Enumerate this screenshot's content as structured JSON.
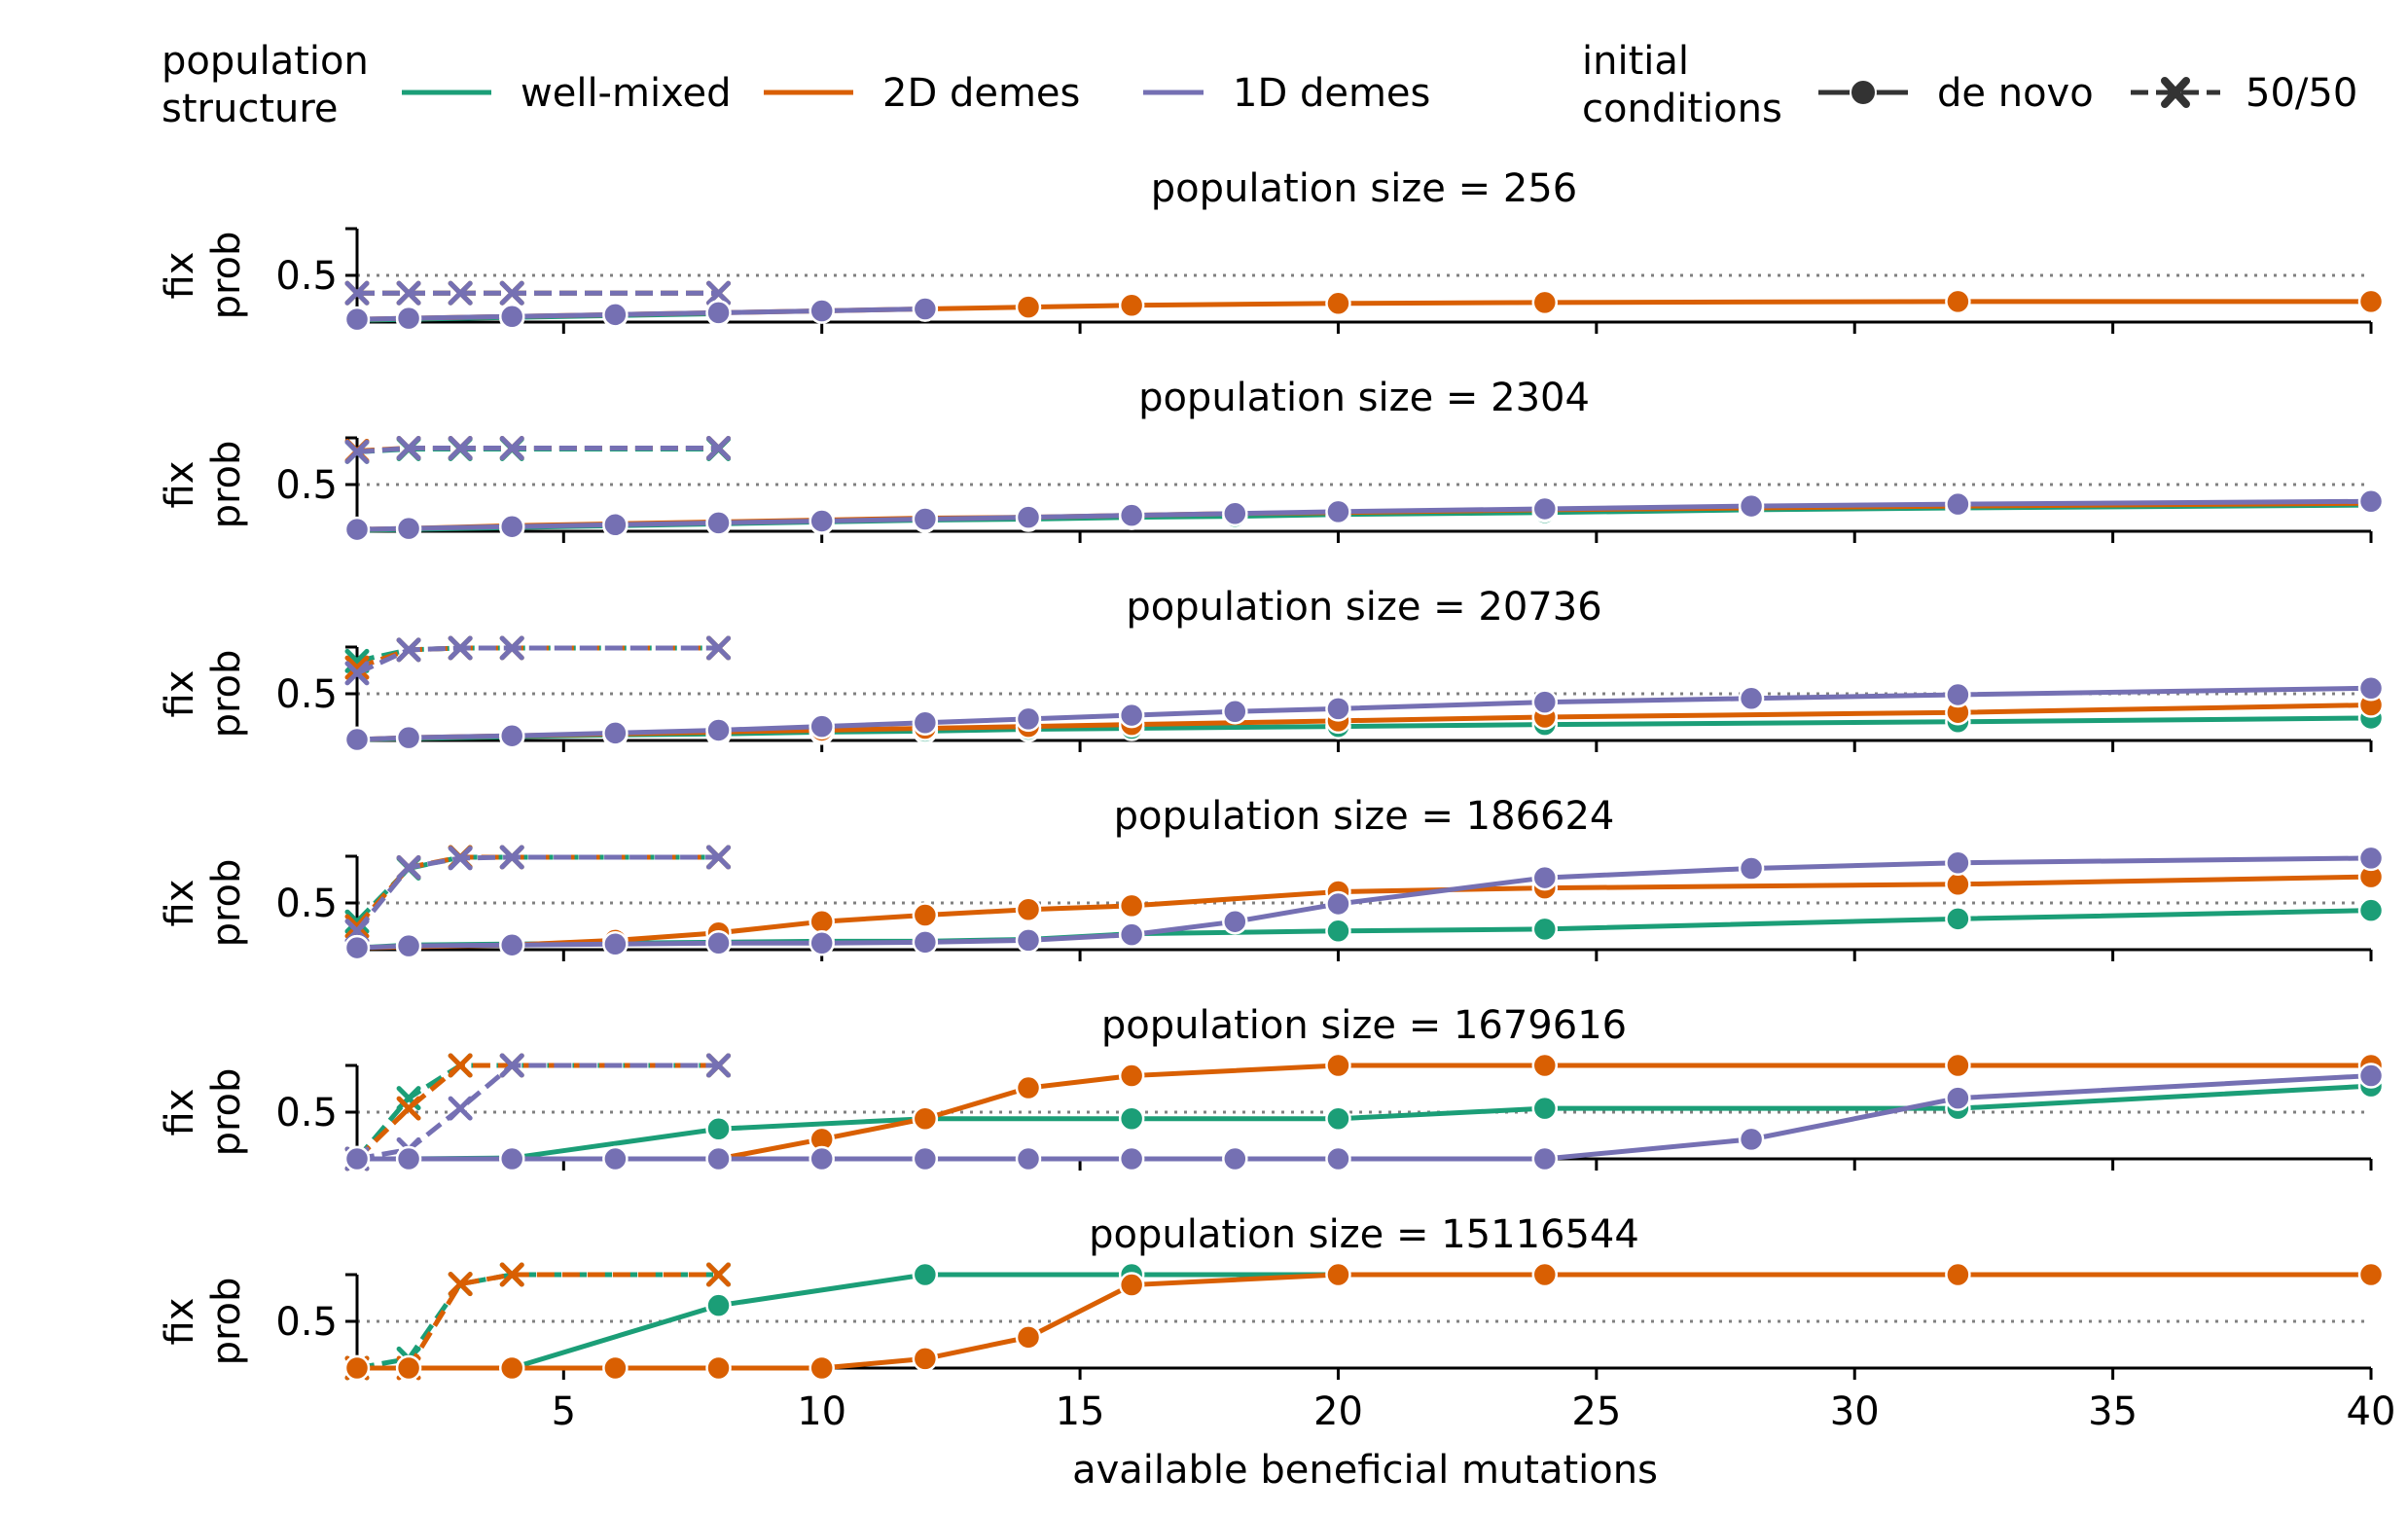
{
  "legend": {
    "structure_title": [
      "population",
      "structure"
    ],
    "structure_items": [
      {
        "label": "well-mixed",
        "color": "#1b9e77"
      },
      {
        "label": "2D demes",
        "color": "#d95f02"
      },
      {
        "label": "1D demes",
        "color": "#7570b3"
      }
    ],
    "conditions_title": [
      "initial",
      "conditions"
    ],
    "condition_items": [
      {
        "label": "de novo",
        "style": "solid",
        "marker": "circle"
      },
      {
        "label": "50/50",
        "style": "dashed",
        "marker": "x"
      }
    ]
  },
  "chart_data": {
    "type": "line",
    "xlabel": "available beneficial mutations",
    "ylabel": [
      "fix",
      "prob"
    ],
    "xlim": [
      1,
      40
    ],
    "ylim": [
      0,
      1
    ],
    "xticks": [
      5,
      10,
      15,
      20,
      25,
      30,
      35,
      40
    ],
    "yticks": [
      0.5
    ],
    "reference_line": {
      "y": 0.5,
      "style": "dotted",
      "color": "#808080"
    },
    "colors": {
      "well-mixed": "#1b9e77",
      "2D demes": "#d95f02",
      "1D demes": "#7570b3"
    },
    "panels": [
      {
        "title": "population size = 256",
        "series": [
          {
            "structure": "well-mixed",
            "condition": "de novo",
            "x": [
              1,
              2,
              4,
              6,
              8
            ],
            "y": [
              0.02,
              0.03,
              0.05,
              0.07,
              0.09
            ]
          },
          {
            "structure": "2D demes",
            "condition": "de novo",
            "x": [
              1,
              2,
              4,
              6,
              8,
              10,
              12,
              14,
              16,
              20,
              24,
              32,
              40
            ],
            "y": [
              0.03,
              0.04,
              0.06,
              0.08,
              0.1,
              0.12,
              0.14,
              0.16,
              0.18,
              0.2,
              0.21,
              0.22,
              0.22
            ]
          },
          {
            "structure": "1D demes",
            "condition": "de novo",
            "x": [
              1,
              2,
              4,
              6,
              8,
              10,
              12
            ],
            "y": [
              0.03,
              0.04,
              0.06,
              0.08,
              0.1,
              0.12,
              0.14
            ]
          },
          {
            "structure": "well-mixed",
            "condition": "50/50",
            "x": [
              1,
              2,
              3,
              4,
              8
            ],
            "y": [
              0.31,
              0.31,
              0.31,
              0.31,
              0.31
            ]
          },
          {
            "structure": "2D demes",
            "condition": "50/50",
            "x": [
              1,
              2,
              3,
              4,
              8
            ],
            "y": [
              0.31,
              0.31,
              0.31,
              0.31,
              0.31
            ]
          },
          {
            "structure": "1D demes",
            "condition": "50/50",
            "x": [
              1,
              2,
              3,
              4,
              8
            ],
            "y": [
              0.31,
              0.31,
              0.31,
              0.31,
              0.31
            ]
          }
        ]
      },
      {
        "title": "population size = 2304",
        "series": [
          {
            "structure": "well-mixed",
            "condition": "de novo",
            "x": [
              1,
              2,
              4,
              6,
              8,
              10,
              12,
              14,
              16,
              18,
              20,
              24,
              28,
              32,
              40
            ],
            "y": [
              0.01,
              0.02,
              0.04,
              0.06,
              0.08,
              0.1,
              0.12,
              0.13,
              0.15,
              0.16,
              0.18,
              0.2,
              0.23,
              0.25,
              0.28
            ]
          },
          {
            "structure": "2D demes",
            "condition": "de novo",
            "x": [
              1,
              2,
              4,
              6,
              8,
              10,
              12,
              14,
              16,
              18,
              20,
              24,
              28,
              32,
              40
            ],
            "y": [
              0.02,
              0.03,
              0.06,
              0.08,
              0.1,
              0.12,
              0.14,
              0.15,
              0.17,
              0.19,
              0.2,
              0.23,
              0.25,
              0.27,
              0.3
            ]
          },
          {
            "structure": "1D demes",
            "condition": "de novo",
            "x": [
              1,
              2,
              4,
              6,
              8,
              10,
              12,
              14,
              16,
              18,
              20,
              24,
              28,
              32,
              40
            ],
            "y": [
              0.02,
              0.03,
              0.05,
              0.07,
              0.09,
              0.11,
              0.13,
              0.15,
              0.17,
              0.19,
              0.21,
              0.24,
              0.27,
              0.29,
              0.32
            ]
          },
          {
            "structure": "well-mixed",
            "condition": "50/50",
            "x": [
              1,
              2,
              3,
              4,
              8
            ],
            "y": [
              0.85,
              0.88,
              0.88,
              0.88,
              0.88
            ]
          },
          {
            "structure": "2D demes",
            "condition": "50/50",
            "x": [
              1,
              2,
              3,
              4,
              8
            ],
            "y": [
              0.86,
              0.89,
              0.89,
              0.89,
              0.89
            ]
          },
          {
            "structure": "1D demes",
            "condition": "50/50",
            "x": [
              1,
              2,
              3,
              4,
              8
            ],
            "y": [
              0.85,
              0.89,
              0.89,
              0.89,
              0.89
            ]
          }
        ]
      },
      {
        "title": "population size = 20736",
        "series": [
          {
            "structure": "well-mixed",
            "condition": "de novo",
            "x": [
              1,
              2,
              4,
              6,
              8,
              10,
              12,
              14,
              16,
              20,
              24,
              32,
              40
            ],
            "y": [
              0.01,
              0.02,
              0.04,
              0.06,
              0.07,
              0.09,
              0.1,
              0.12,
              0.13,
              0.15,
              0.17,
              0.2,
              0.24
            ]
          },
          {
            "structure": "2D demes",
            "condition": "de novo",
            "x": [
              1,
              2,
              4,
              6,
              8,
              10,
              12,
              14,
              16,
              20,
              24,
              32,
              40
            ],
            "y": [
              0.01,
              0.03,
              0.05,
              0.07,
              0.09,
              0.11,
              0.13,
              0.15,
              0.17,
              0.21,
              0.25,
              0.3,
              0.38
            ]
          },
          {
            "structure": "1D demes",
            "condition": "de novo",
            "x": [
              1,
              2,
              4,
              6,
              8,
              10,
              12,
              14,
              16,
              18,
              20,
              24,
              28,
              32,
              40
            ],
            "y": [
              0.01,
              0.03,
              0.05,
              0.08,
              0.11,
              0.15,
              0.19,
              0.23,
              0.27,
              0.31,
              0.34,
              0.41,
              0.45,
              0.49,
              0.56
            ]
          },
          {
            "structure": "well-mixed",
            "condition": "50/50",
            "x": [
              1,
              2,
              3,
              4,
              8
            ],
            "y": [
              0.85,
              0.97,
              0.99,
              0.99,
              0.99
            ]
          },
          {
            "structure": "2D demes",
            "condition": "50/50",
            "x": [
              1,
              2,
              3,
              4,
              8
            ],
            "y": [
              0.78,
              0.97,
              0.99,
              0.99,
              0.99
            ]
          },
          {
            "structure": "1D demes",
            "condition": "50/50",
            "x": [
              1,
              2,
              3,
              4,
              8
            ],
            "y": [
              0.72,
              0.97,
              0.99,
              0.99,
              0.99
            ]
          }
        ]
      },
      {
        "title": "population size = 186624",
        "series": [
          {
            "structure": "well-mixed",
            "condition": "de novo",
            "x": [
              1,
              2,
              4,
              6,
              8,
              10,
              12,
              14,
              16,
              20,
              24,
              32,
              40
            ],
            "y": [
              0.02,
              0.05,
              0.06,
              0.07,
              0.08,
              0.09,
              0.09,
              0.11,
              0.17,
              0.2,
              0.22,
              0.33,
              0.42
            ]
          },
          {
            "structure": "2D demes",
            "condition": "de novo",
            "x": [
              1,
              2,
              4,
              6,
              8,
              10,
              12,
              14,
              16,
              20,
              24,
              32,
              40
            ],
            "y": [
              0.02,
              0.03,
              0.05,
              0.1,
              0.18,
              0.3,
              0.37,
              0.43,
              0.47,
              0.62,
              0.66,
              0.7,
              0.78
            ]
          },
          {
            "structure": "1D demes",
            "condition": "de novo",
            "x": [
              1,
              2,
              4,
              6,
              8,
              10,
              12,
              14,
              16,
              18,
              20,
              24,
              28,
              32,
              40
            ],
            "y": [
              0.02,
              0.04,
              0.05,
              0.06,
              0.07,
              0.07,
              0.08,
              0.1,
              0.16,
              0.3,
              0.49,
              0.77,
              0.87,
              0.93,
              0.98
            ]
          },
          {
            "structure": "well-mixed",
            "condition": "50/50",
            "x": [
              1,
              2,
              3,
              4,
              8
            ],
            "y": [
              0.3,
              0.87,
              0.99,
              0.99,
              0.99
            ]
          },
          {
            "structure": "2D demes",
            "condition": "50/50",
            "x": [
              1,
              2,
              3,
              4,
              8
            ],
            "y": [
              0.25,
              0.88,
              0.99,
              0.99,
              0.99
            ]
          },
          {
            "structure": "1D demes",
            "condition": "50/50",
            "x": [
              1,
              2,
              3,
              4,
              8
            ],
            "y": [
              0.2,
              0.88,
              0.98,
              0.99,
              0.99
            ]
          }
        ]
      },
      {
        "title": "population size = 1679616",
        "series": [
          {
            "structure": "well-mixed",
            "condition": "de novo",
            "x": [
              1,
              2,
              4,
              8,
              12,
              16,
              20,
              24,
              32,
              40
            ],
            "y": [
              0.0,
              0.0,
              0.01,
              0.32,
              0.43,
              0.43,
              0.43,
              0.54,
              0.54,
              0.78
            ]
          },
          {
            "structure": "2D demes",
            "condition": "de novo",
            "x": [
              1,
              2,
              4,
              6,
              8,
              10,
              12,
              14,
              16,
              20,
              24,
              32,
              40
            ],
            "y": [
              0.0,
              0.0,
              0.0,
              0.0,
              0.0,
              0.21,
              0.43,
              0.76,
              0.89,
              1.0,
              1.0,
              1.0,
              1.0
            ]
          },
          {
            "structure": "1D demes",
            "condition": "de novo",
            "x": [
              1,
              2,
              4,
              6,
              8,
              10,
              12,
              14,
              16,
              18,
              20,
              24,
              28,
              32,
              40
            ],
            "y": [
              0.0,
              0.0,
              0.0,
              0.0,
              0.0,
              0.0,
              0.0,
              0.0,
              0.0,
              0.0,
              0.0,
              0.0,
              0.21,
              0.65,
              0.89
            ]
          },
          {
            "structure": "well-mixed",
            "condition": "50/50",
            "x": [
              1,
              2,
              3,
              4,
              8
            ],
            "y": [
              0.0,
              0.65,
              1.0,
              1.0,
              1.0
            ]
          },
          {
            "structure": "2D demes",
            "condition": "50/50",
            "x": [
              1,
              2,
              3,
              4,
              8
            ],
            "y": [
              0.0,
              0.54,
              1.0,
              1.0,
              1.0
            ]
          },
          {
            "structure": "1D demes",
            "condition": "50/50",
            "x": [
              1,
              2,
              3,
              4,
              8
            ],
            "y": [
              0.0,
              0.1,
              0.54,
              1.0,
              1.0
            ]
          }
        ]
      },
      {
        "title": "population size = 15116544",
        "series": [
          {
            "structure": "well-mixed",
            "condition": "de novo",
            "x": [
              1,
              2,
              4,
              8,
              12,
              16,
              20,
              24,
              32,
              40
            ],
            "y": [
              0.0,
              0.0,
              0.0,
              0.67,
              1.0,
              1.0,
              1.0,
              1.0,
              1.0,
              1.0
            ]
          },
          {
            "structure": "2D demes",
            "condition": "de novo",
            "x": [
              1,
              2,
              4,
              6,
              8,
              10,
              12,
              14,
              16,
              20,
              24,
              32,
              40
            ],
            "y": [
              0.0,
              0.0,
              0.0,
              0.0,
              0.0,
              0.0,
              0.1,
              0.33,
              0.89,
              1.0,
              1.0,
              1.0,
              1.0
            ]
          },
          {
            "structure": "well-mixed",
            "condition": "50/50",
            "x": [
              1,
              2,
              3,
              4,
              8
            ],
            "y": [
              0.0,
              0.1,
              0.9,
              1.0,
              1.0
            ]
          },
          {
            "structure": "2D demes",
            "condition": "50/50",
            "x": [
              1,
              2,
              3,
              4,
              8
            ],
            "y": [
              0.0,
              0.0,
              0.9,
              1.0,
              1.0
            ]
          }
        ]
      }
    ]
  }
}
